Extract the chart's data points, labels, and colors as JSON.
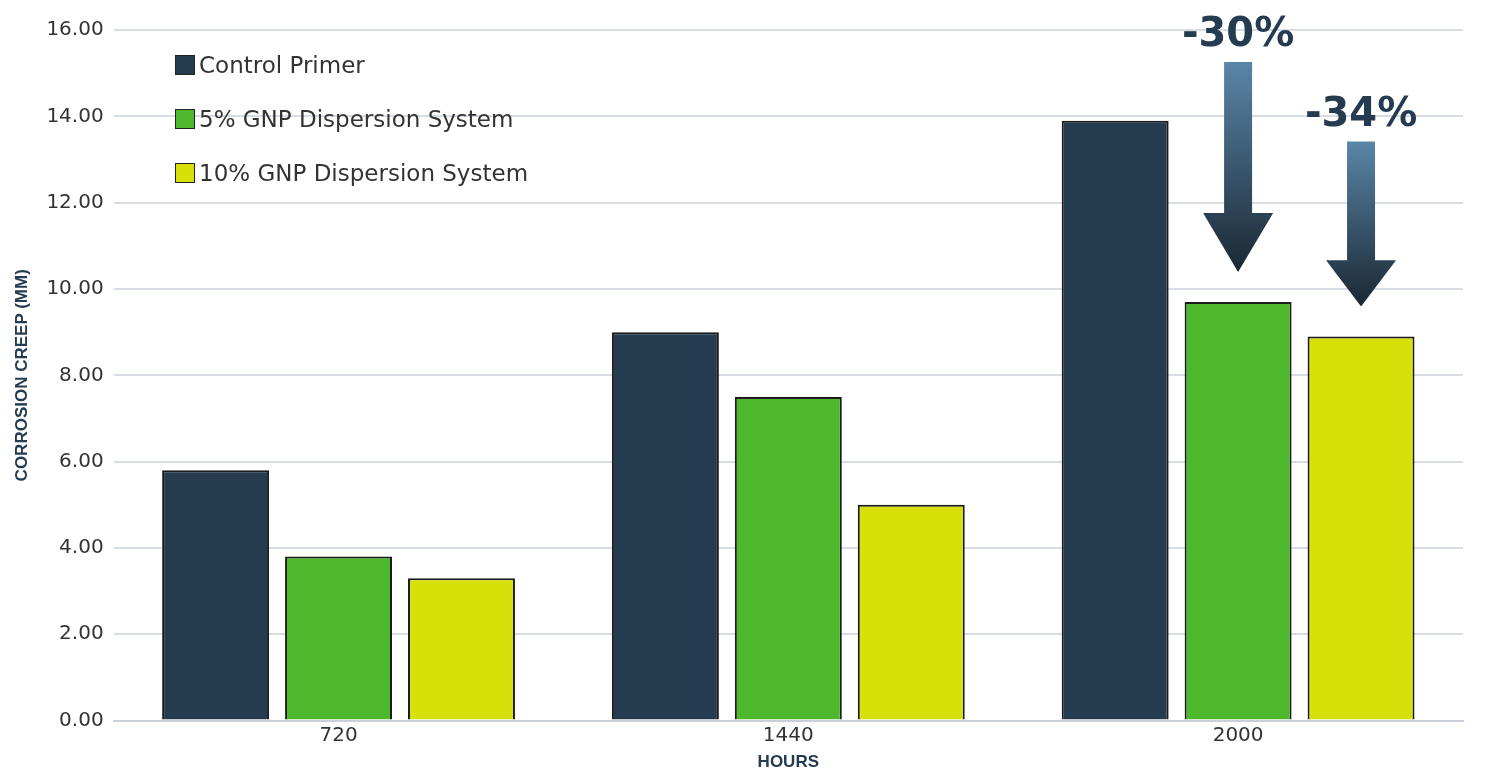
{
  "chart_data": {
    "type": "bar",
    "categories": [
      "720",
      "1440",
      "2000"
    ],
    "series": [
      {
        "name": "Control Primer",
        "color": "#243b50",
        "values": [
          5.8,
          9.0,
          13.9
        ]
      },
      {
        "name": "5% GNP Dispersion  System",
        "color": "#4db82c",
        "values": [
          3.8,
          7.5,
          9.7
        ]
      },
      {
        "name": "10% GNP Dispersion System",
        "color": "#d8e00a",
        "values": [
          3.3,
          5.0,
          8.9
        ]
      }
    ],
    "xlabel": "HOURS",
    "ylabel": "CORROSION CREEP (MM)",
    "ylim": [
      0,
      16
    ],
    "yticks": [
      {
        "value": 0,
        "label": "0.00"
      },
      {
        "value": 2,
        "label": "2.00"
      },
      {
        "value": 4,
        "label": "4.00"
      },
      {
        "value": 6,
        "label": "6.00"
      },
      {
        "value": 8,
        "label": "8.00"
      },
      {
        "value": 10,
        "label": "10.00"
      },
      {
        "value": 12,
        "label": "12.00"
      },
      {
        "value": 14,
        "label": "14.00"
      },
      {
        "value": 16,
        "label": "16.00"
      }
    ],
    "annotations": [
      "-30%",
      "-34%"
    ],
    "grid": "y",
    "legend": "top left"
  }
}
